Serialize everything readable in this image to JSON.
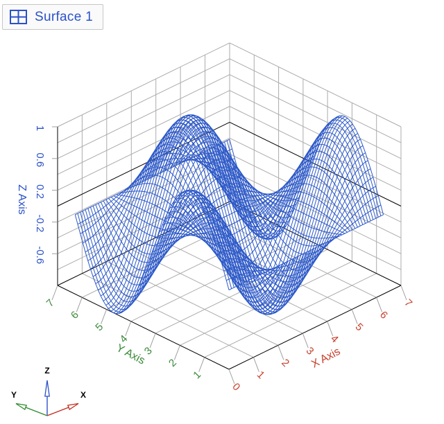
{
  "tab": {
    "label": "Surface 1",
    "text_color": "#2b51c8",
    "icon_color": "#2b51c8",
    "border_color": "#c6c6c6",
    "background": "#fafafa"
  },
  "chart_data": {
    "type": "surface3d-wireframe",
    "title": "Surface 1",
    "function": "z = cos(x) * sin(y)",
    "plotted_x_range": [
      0,
      6.2832
    ],
    "plotted_y_range": [
      0,
      6.2832
    ],
    "mesh": {
      "divisions": 60,
      "color": "#2d59c8",
      "stroke_width": 1
    },
    "axes": {
      "x": {
        "label": "X Axis",
        "range": [
          0,
          7
        ],
        "tick_labels": [
          "0",
          "1",
          "2",
          "3",
          "4",
          "5",
          "6",
          "7"
        ],
        "color": "#c7402d"
      },
      "y": {
        "label": "Y Axis",
        "range": [
          0,
          7
        ],
        "tick_labels": [
          "1",
          "2",
          "3",
          "4",
          "5",
          "6",
          "7"
        ],
        "color": "#3a8a3a"
      },
      "z": {
        "label": "Z Axis",
        "range": [
          -1,
          1
        ],
        "tick_labels": [
          "1",
          "0.6",
          "0.2",
          "-0.2",
          "-0.6"
        ],
        "wall_grid_step": 0.2,
        "color": "#2b51c8"
      }
    },
    "grid": {
      "on": true,
      "minor_color": "#ababab",
      "frame_color": "#000000",
      "zero_line_color": "#000000"
    },
    "sample_grid": {
      "x": [
        0,
        1,
        2,
        3,
        4,
        5,
        6,
        6.2832
      ],
      "y": [
        0,
        1,
        2,
        3,
        4,
        5,
        6,
        6.2832
      ],
      "z": [
        [
          0,
          0.841,
          0.909,
          0.141,
          -0.757,
          -0.959,
          -0.279,
          0
        ],
        [
          0,
          0.455,
          0.491,
          0.076,
          -0.409,
          -0.518,
          -0.151,
          0
        ],
        [
          0,
          -0.35,
          -0.378,
          -0.059,
          0.315,
          0.399,
          0.116,
          0
        ],
        [
          0,
          -0.833,
          -0.9,
          -0.14,
          0.749,
          0.949,
          0.276,
          0
        ],
        [
          0,
          -0.55,
          -0.594,
          -0.092,
          0.495,
          0.627,
          0.182,
          0
        ],
        [
          0,
          0.239,
          0.258,
          0.04,
          -0.215,
          -0.272,
          -0.079,
          0
        ],
        [
          0,
          0.808,
          0.873,
          0.135,
          -0.727,
          -0.921,
          -0.268,
          0
        ],
        [
          0,
          0.841,
          0.909,
          0.141,
          -0.757,
          -0.959,
          -0.279,
          0
        ]
      ]
    },
    "legend_position": "none"
  },
  "orientation_triad": {
    "x_label": "X",
    "y_label": "Y",
    "z_label": "Z",
    "x_color": "#c32d1f",
    "y_color": "#2e8a2e",
    "z_color": "#2b51c8",
    "label_color": "#000000"
  }
}
